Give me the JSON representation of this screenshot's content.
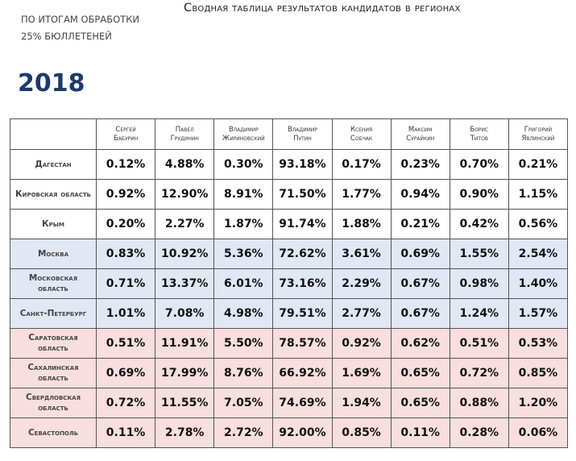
{
  "header": {
    "note": [
      "ПО ИТОГАМ ОБРАБОТКИ",
      "25% БЮЛЛЕТЕНЕЙ"
    ],
    "title": "Сводная таблица результатов кандидатов в регионах",
    "year": "2018"
  },
  "table": {
    "candidates": [
      {
        "first": "Сергей",
        "last": "Бабурин"
      },
      {
        "first": "Павел",
        "last": "Грудинин"
      },
      {
        "first": "Владимир",
        "last": "Жириновский"
      },
      {
        "first": "Владимир",
        "last": "Путин"
      },
      {
        "first": "Ксения",
        "last": "Собчак"
      },
      {
        "first": "Максим",
        "last": "Сурайкин"
      },
      {
        "first": "Борис",
        "last": "Титов"
      },
      {
        "first": "Григорий",
        "last": "Явлинский"
      }
    ],
    "rows": [
      {
        "region": "Дагестан",
        "values": [
          "0.12%",
          "4.88%",
          "0.30%",
          "93.18%",
          "0.17%",
          "0.23%",
          "0.70%",
          "0.21%"
        ]
      },
      {
        "region": "Кировская область",
        "values": [
          "0.92%",
          "12.90%",
          "8.91%",
          "71.50%",
          "1.77%",
          "0.94%",
          "0.90%",
          "1.15%"
        ]
      },
      {
        "region": "Крым",
        "values": [
          "0.20%",
          "2.27%",
          "1.87%",
          "91.74%",
          "1.88%",
          "0.21%",
          "0.42%",
          "0.56%"
        ]
      },
      {
        "region": "Москва",
        "values": [
          "0.83%",
          "10.92%",
          "5.36%",
          "72.62%",
          "3.61%",
          "0.69%",
          "1.55%",
          "2.54%"
        ]
      },
      {
        "region": "Московская область",
        "values": [
          "0.71%",
          "13.37%",
          "6.01%",
          "73.16%",
          "2.29%",
          "0.67%",
          "0.98%",
          "1.40%"
        ]
      },
      {
        "region": "Санкт-Петербург",
        "values": [
          "1.01%",
          "7.08%",
          "4.98%",
          "79.51%",
          "2.77%",
          "0.67%",
          "1.24%",
          "1.57%"
        ]
      },
      {
        "region": "Саратовская область",
        "values": [
          "0.51%",
          "11.91%",
          "5.50%",
          "78.57%",
          "0.92%",
          "0.62%",
          "0.51%",
          "0.53%"
        ]
      },
      {
        "region": "Сахалинская область",
        "values": [
          "0.69%",
          "17.99%",
          "8.76%",
          "66.92%",
          "1.69%",
          "0.65%",
          "0.72%",
          "0.85%"
        ]
      },
      {
        "region": "Свердловская область",
        "values": [
          "0.72%",
          "11.55%",
          "7.05%",
          "74.69%",
          "1.94%",
          "0.65%",
          "0.88%",
          "1.20%"
        ]
      },
      {
        "region": "Севастополь",
        "values": [
          "0.11%",
          "2.78%",
          "2.72%",
          "92.00%",
          "0.85%",
          "0.11%",
          "0.28%",
          "0.06%"
        ]
      }
    ]
  }
}
